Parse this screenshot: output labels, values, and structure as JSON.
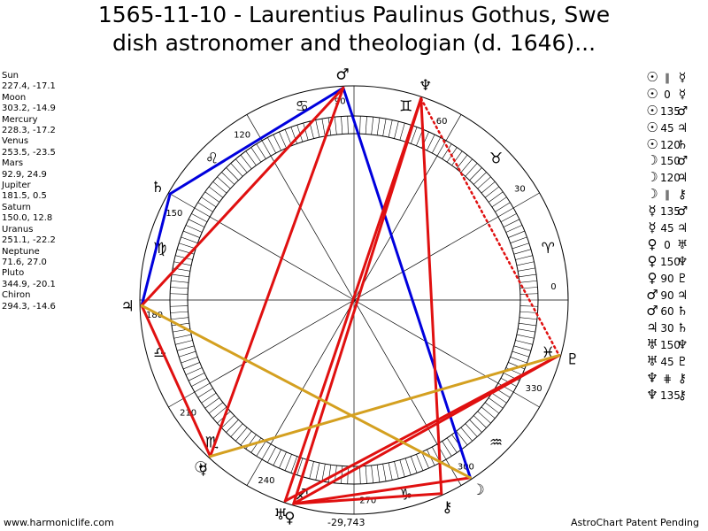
{
  "title_line1": "1565-11-10 - Laurentius Paulinus Gothus, Swe",
  "title_line2": "dish astronomer and theologian (d. 1646)...",
  "positions": [
    {
      "name": "Sun",
      "coords": "227.4, -17.1"
    },
    {
      "name": "Moon",
      "coords": "303.2, -14.9"
    },
    {
      "name": "Mercury",
      "coords": "228.3, -17.2"
    },
    {
      "name": "Venus",
      "coords": "253.5, -23.5"
    },
    {
      "name": "Mars",
      "coords": "92.9, 24.9"
    },
    {
      "name": "Jupiter",
      "coords": "181.5, 0.5"
    },
    {
      "name": "Saturn",
      "coords": "150.0, 12.8"
    },
    {
      "name": "Uranus",
      "coords": "251.1, -22.2"
    },
    {
      "name": "Neptune",
      "coords": "71.6, 27.0"
    },
    {
      "name": "Pluto",
      "coords": "344.9, -20.1"
    },
    {
      "name": "Chiron",
      "coords": "294.3, -14.6"
    }
  ],
  "aspects": [
    {
      "p1": "☉",
      "aspect": "∥",
      "p2": "☿"
    },
    {
      "p1": "☉",
      "aspect": "0",
      "p2": "☿"
    },
    {
      "p1": "☉",
      "aspect": "135",
      "p2": "♂"
    },
    {
      "p1": "☉",
      "aspect": "45",
      "p2": "♃"
    },
    {
      "p1": "☉",
      "aspect": "120",
      "p2": "♄"
    },
    {
      "p1": "☽",
      "aspect": "150",
      "p2": "♂"
    },
    {
      "p1": "☽",
      "aspect": "120",
      "p2": "♃"
    },
    {
      "p1": "☽",
      "aspect": "∥",
      "p2": "⚷"
    },
    {
      "p1": "☿",
      "aspect": "135",
      "p2": "♂"
    },
    {
      "p1": "☿",
      "aspect": "45",
      "p2": "♃"
    },
    {
      "p1": "♀",
      "aspect": "0",
      "p2": "♅"
    },
    {
      "p1": "♀",
      "aspect": "150",
      "p2": "♆"
    },
    {
      "p1": "♀",
      "aspect": "90",
      "p2": "♇"
    },
    {
      "p1": "♂",
      "aspect": "90",
      "p2": "♃"
    },
    {
      "p1": "♂",
      "aspect": "60",
      "p2": "♄"
    },
    {
      "p1": "♃",
      "aspect": "30",
      "p2": "♄"
    },
    {
      "p1": "♅",
      "aspect": "150",
      "p2": "♆"
    },
    {
      "p1": "♅",
      "aspect": "45",
      "p2": "♇"
    },
    {
      "p1": "♆",
      "aspect": "⋕",
      "p2": "⚷"
    },
    {
      "p1": "♆",
      "aspect": "135",
      "p2": "⚷"
    }
  ],
  "degree_labels": [
    "0",
    "30",
    "60",
    "90",
    "120",
    "150",
    "180",
    "210",
    "240",
    "270",
    "300",
    "330"
  ],
  "zodiac_signs": [
    "♈",
    "♉",
    "♊",
    "♋",
    "♌",
    "♍",
    "♎",
    "♏",
    "♐",
    "♑",
    "♒",
    "♓"
  ],
  "planet_glyphs": {
    "Sun": "☉",
    "Moon": "☽",
    "Mercury": "☿",
    "Venus": "♀",
    "Mars": "♂",
    "Jupiter": "♃",
    "Saturn": "♄",
    "Uranus": "♅",
    "Neptune": "♆",
    "Pluto": "♇",
    "Chiron": "⚷"
  },
  "planet_longitudes": {
    "Sun": 227.4,
    "Moon": 303.2,
    "Mercury": 228.3,
    "Venus": 253.5,
    "Mars": 92.9,
    "Jupiter": 181.5,
    "Saturn": 150.0,
    "Uranus": 251.1,
    "Neptune": 71.6,
    "Pluto": 344.9,
    "Chiron": 294.3
  },
  "aspect_lines": [
    {
      "from": "Moon",
      "to": "Mars",
      "color": "#0000dd",
      "dotted": false
    },
    {
      "from": "Mars",
      "to": "Saturn",
      "color": "#0000dd",
      "dotted": false
    },
    {
      "from": "Saturn",
      "to": "Jupiter",
      "color": "#0000dd",
      "dotted": false
    },
    {
      "from": "Mars",
      "to": "Jupiter",
      "color": "#e01010",
      "dotted": false
    },
    {
      "from": "Mars",
      "to": "Sun",
      "color": "#e01010",
      "dotted": false
    },
    {
      "from": "Jupiter",
      "to": "Sun",
      "color": "#e01010",
      "dotted": false
    },
    {
      "from": "Neptune",
      "to": "Venus",
      "color": "#e01010",
      "dotted": false
    },
    {
      "from": "Neptune",
      "to": "Uranus",
      "color": "#e01010",
      "dotted": false
    },
    {
      "from": "Neptune",
      "to": "Chiron",
      "color": "#e01010",
      "dotted": false
    },
    {
      "from": "Moon",
      "to": "Venus",
      "color": "#e01010",
      "dotted": false
    },
    {
      "from": "Pluto",
      "to": "Uranus",
      "color": "#e01010",
      "dotted": false
    },
    {
      "from": "Chiron",
      "to": "Venus",
      "color": "#e01010",
      "dotted": false
    },
    {
      "from": "Pluto",
      "to": "Venus",
      "color": "#e01010",
      "dotted": false
    },
    {
      "from": "Neptune",
      "to": "Pluto",
      "color": "#e01010",
      "dotted": true
    },
    {
      "from": "Jupiter",
      "to": "Moon",
      "color": "#d4a020",
      "dotted": false
    },
    {
      "from": "Sun",
      "to": "Pluto",
      "color": "#d4a020",
      "dotted": false
    }
  ],
  "footer_left": "www.harmoniclife.com",
  "footer_center": "-29,743",
  "footer_right": "AstroChart Patent Pending"
}
